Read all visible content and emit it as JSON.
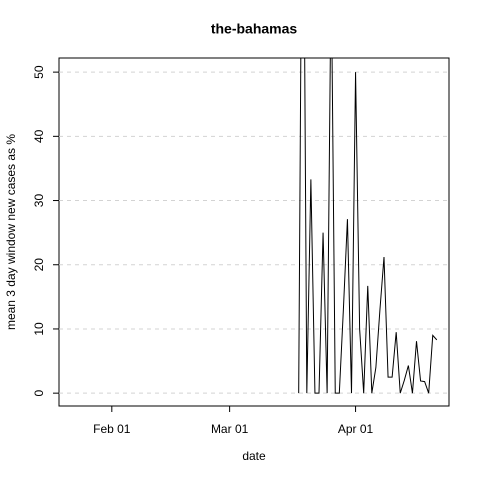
{
  "chart_data": {
    "type": "line",
    "title": "the-bahamas",
    "x_label": "date",
    "y_label": "mean  3  day window new cases as %",
    "x": [
      "Mar 18",
      "Mar 19",
      "Mar 20",
      "Mar 21",
      "Mar 22",
      "Mar 23",
      "Mar 24",
      "Mar 25",
      "Mar 26",
      "Mar 27",
      "Mar 28",
      "Mar 29",
      "Mar 30",
      "Mar 31",
      "Apr 01",
      "Apr 02",
      "Apr 03",
      "Apr 04",
      "Apr 05",
      "Apr 06",
      "Apr 07",
      "Apr 08",
      "Apr 09",
      "Apr 10",
      "Apr 11",
      "Apr 12",
      "Apr 13",
      "Apr 14",
      "Apr 15",
      "Apr 16",
      "Apr 17",
      "Apr 18",
      "Apr 19",
      "Apr 20",
      "Apr 21"
    ],
    "series": [
      {
        "color": "#000000",
        "values": [
          0,
          100,
          0,
          33.3,
          0,
          0,
          25,
          0,
          66.7,
          0,
          0,
          13,
          27.1,
          0,
          50,
          10,
          0,
          16.7,
          0,
          4,
          13,
          21.2,
          2.5,
          2.5,
          9.5,
          0,
          2,
          4.3,
          0,
          8.1,
          1.9,
          1.8,
          0,
          9,
          8.3
        ]
      }
    ],
    "xlim": [
      "Jan 19",
      "Apr 24"
    ],
    "xticks": [
      "Feb 01",
      "Mar 01",
      "Apr 01"
    ],
    "ylim": [
      -2,
      52.2
    ],
    "yticks": [
      0,
      10,
      20,
      30,
      40,
      50
    ],
    "grid": true
  }
}
